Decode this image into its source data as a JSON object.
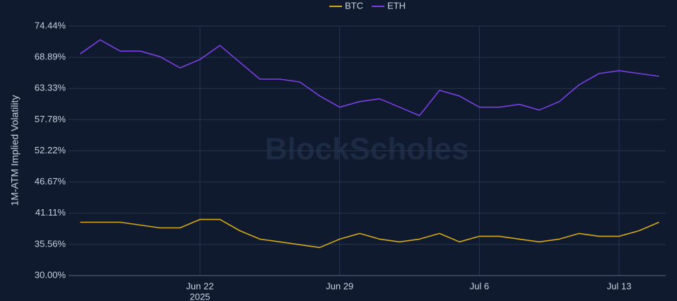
{
  "chart_data": {
    "type": "line",
    "y_label": "1M-ATM Implied Volatility",
    "watermark": "BlockScholes",
    "x": [
      "2025-06-16",
      "2025-06-17",
      "2025-06-18",
      "2025-06-19",
      "2025-06-20",
      "2025-06-21",
      "2025-06-22",
      "2025-06-23",
      "2025-06-24",
      "2025-06-25",
      "2025-06-26",
      "2025-06-27",
      "2025-06-28",
      "2025-06-29",
      "2025-06-30",
      "2025-07-01",
      "2025-07-02",
      "2025-07-03",
      "2025-07-04",
      "2025-07-05",
      "2025-07-06",
      "2025-07-07",
      "2025-07-08",
      "2025-07-09",
      "2025-07-10",
      "2025-07-11",
      "2025-07-12",
      "2025-07-13",
      "2025-07-14",
      "2025-07-15"
    ],
    "series": [
      {
        "name": "BTC",
        "color": "#d4a817",
        "values": [
          39.5,
          39.5,
          39.5,
          39,
          38.5,
          38.5,
          40,
          40,
          38,
          36.5,
          36,
          35.5,
          35,
          36.5,
          37.5,
          36.5,
          36,
          36.5,
          37.5,
          36,
          37,
          37,
          36.5,
          36,
          36.5,
          37.5,
          37,
          37,
          38,
          39.5
        ]
      },
      {
        "name": "ETH",
        "color": "#7b3fe4",
        "values": [
          69.5,
          72,
          70,
          70,
          69,
          67,
          68.5,
          71,
          68,
          65,
          65,
          64.5,
          62,
          60,
          61,
          61.5,
          60,
          58.5,
          63,
          62,
          60,
          60,
          60.5,
          59.5,
          61,
          64,
          66,
          66.5,
          66,
          65.5
        ]
      }
    ],
    "xlim": [
      "2025-06-15T10:00",
      "2025-07-15T08:00"
    ],
    "xticks": [
      {
        "value": "2025-06-22",
        "label": "Jun 22"
      },
      {
        "value": "2025-06-29",
        "label": "Jun 29"
      },
      {
        "value": "2025-07-06",
        "label": "Jul 6"
      },
      {
        "value": "2025-07-13",
        "label": "Jul 13"
      }
    ],
    "x_year_label": "2025",
    "ylim": [
      30,
      74.44
    ],
    "yticks": [
      {
        "value": 30,
        "label": "30.00%"
      },
      {
        "value": 35.56,
        "label": "35.56%"
      },
      {
        "value": 41.11,
        "label": "41.11%"
      },
      {
        "value": 46.67,
        "label": "46.67%"
      },
      {
        "value": 52.22,
        "label": "52.22%"
      },
      {
        "value": 57.78,
        "label": "57.78%"
      },
      {
        "value": 63.33,
        "label": "63.33%"
      },
      {
        "value": 68.89,
        "label": "68.89%"
      },
      {
        "value": 74.44,
        "label": "74.44%"
      }
    ],
    "grid": true,
    "legend": "top"
  }
}
